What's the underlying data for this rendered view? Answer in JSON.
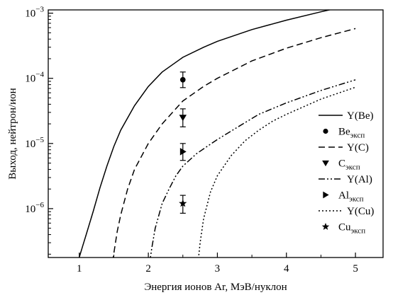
{
  "chart_data": {
    "type": "line",
    "xlabel": "Энергия ионов Ar, МэВ/нуклон",
    "ylabel": "Выход, нейтрон/ион",
    "xlim": [
      0.55,
      5.4
    ],
    "ylim_log10": [
      -6.75,
      -2.95
    ],
    "y_scale": "log",
    "grid": false,
    "legend_position": "right",
    "x_ticks": [
      1,
      2,
      3,
      4,
      5
    ],
    "x_tick_labels": [
      "1",
      "2",
      "3",
      "4",
      "5"
    ],
    "y_ticks_log10": [
      -6,
      -5,
      -4,
      -3
    ],
    "y_tick_labels": [
      {
        "base": "10",
        "exp": "−6"
      },
      {
        "base": "10",
        "exp": "−5"
      },
      {
        "base": "10",
        "exp": "−4"
      },
      {
        "base": "10",
        "exp": "−3"
      }
    ],
    "lines": [
      {
        "name": "Y(Be)",
        "base": "Y(Be)",
        "sub": "",
        "dash": "solid",
        "x": [
          1.0,
          1.05,
          1.1,
          1.2,
          1.3,
          1.4,
          1.5,
          1.6,
          1.8,
          2.0,
          2.2,
          2.5,
          2.8,
          3.0,
          3.5,
          4.0,
          4.5,
          5.0
        ],
        "y": [
          1.8e-07,
          2.7e-07,
          4e-07,
          9e-07,
          2.1e-06,
          4.5e-06,
          9e-06,
          1.6e-05,
          3.8e-05,
          7.5e-05,
          0.000125,
          0.00021,
          0.0003,
          0.00037,
          0.00056,
          0.00078,
          0.00105,
          0.00138
        ]
      },
      {
        "name": "Y(C)",
        "base": "Y(C)",
        "sub": "",
        "dash": "dash",
        "x": [
          1.48,
          1.55,
          1.6,
          1.7,
          1.8,
          2.0,
          2.2,
          2.5,
          2.8,
          3.0,
          3.5,
          4.0,
          4.5,
          5.0
        ],
        "y": [
          1.5e-07,
          4.5e-07,
          8e-07,
          2e-06,
          4e-06,
          1e-05,
          2e-05,
          4.5e-05,
          7.5e-05,
          0.0001,
          0.000185,
          0.00029,
          0.00042,
          0.00058
        ]
      },
      {
        "name": "Y(Al)",
        "base": "Y(Al)",
        "sub": "",
        "dash": "dashdotdot",
        "x": [
          2.02,
          2.05,
          2.1,
          2.2,
          2.3,
          2.4,
          2.5,
          2.7,
          3.0,
          3.3,
          3.6,
          4.0,
          4.5,
          5.0
        ],
        "y": [
          1.5e-07,
          2.5e-07,
          5e-07,
          1.2e-06,
          2e-06,
          3.2e-06,
          4.5e-06,
          7e-06,
          1.15e-05,
          1.8e-05,
          2.8e-05,
          4.2e-05,
          6.5e-05,
          9.5e-05
        ]
      },
      {
        "name": "Y(Cu)",
        "base": "Y(Cu)",
        "sub": "",
        "dash": "dot",
        "x": [
          2.72,
          2.75,
          2.8,
          2.9,
          3.0,
          3.2,
          3.4,
          3.6,
          3.8,
          4.0,
          4.5,
          5.0
        ],
        "y": [
          1.5e-07,
          3e-07,
          7e-07,
          1.8e-06,
          3.2e-06,
          6.5e-06,
          1.1e-05,
          1.6e-05,
          2.2e-05,
          2.8e-05,
          4.8e-05,
          7.3e-05
        ]
      }
    ],
    "points": [
      {
        "name": "Be_эксп",
        "base": "Be",
        "sub": "эксп",
        "marker": "circle",
        "x": 2.5,
        "y": 9.5e-05,
        "ylow": 7.2e-05,
        "yhigh": 0.000125
      },
      {
        "name": "C_эксп",
        "base": "C",
        "sub": "эксп",
        "marker": "triangle-down",
        "x": 2.5,
        "y": 2.5e-05,
        "ylow": 1.8e-05,
        "yhigh": 3.4e-05
      },
      {
        "name": "Al_эксп",
        "base": "Al",
        "sub": "эксп",
        "marker": "triangle-right",
        "x": 2.5,
        "y": 7.5e-06,
        "ylow": 5.5e-06,
        "yhigh": 1e-05
      },
      {
        "name": "Cu_эксп",
        "base": "Cu",
        "sub": "эксп",
        "marker": "star",
        "x": 2.5,
        "y": 1.2e-06,
        "ylow": 8.5e-07,
        "yhigh": 1.6e-06
      }
    ],
    "legend_order": [
      "Y(Be)",
      "Be_эксп",
      "Y(C)",
      "C_эксп",
      "Y(Al)",
      "Al_эксп",
      "Y(Cu)",
      "Cu_эксп"
    ]
  }
}
